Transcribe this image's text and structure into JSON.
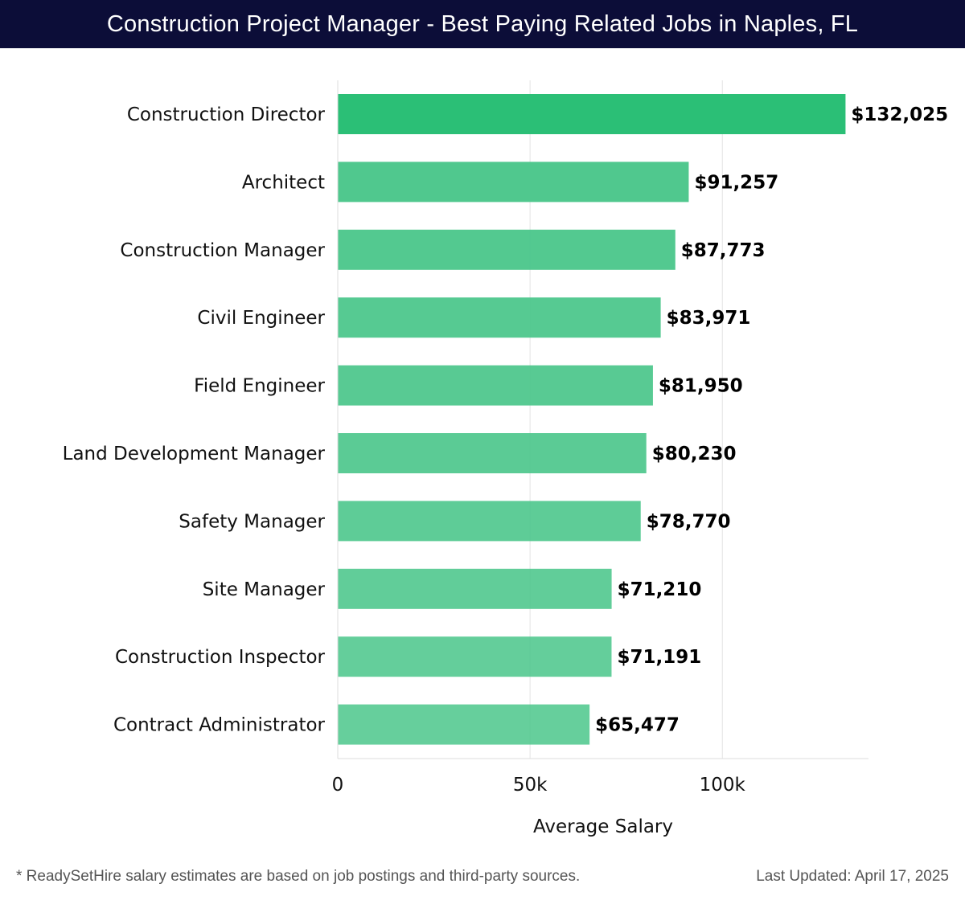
{
  "header": {
    "title": "Construction Project Manager - Best Paying Related Jobs in Naples, FL"
  },
  "chart_data": {
    "type": "bar",
    "orientation": "horizontal",
    "title": "Construction Project Manager - Best Paying Related Jobs in Naples, FL",
    "xlabel": "Average Salary",
    "ylabel": "",
    "xlim": [
      0,
      138000
    ],
    "grid": true,
    "categories": [
      "Construction Director",
      "Architect",
      "Construction Manager",
      "Civil Engineer",
      "Field Engineer",
      "Land Development Manager",
      "Safety Manager",
      "Site Manager",
      "Construction Inspector",
      "Contract Administrator"
    ],
    "values": [
      132025,
      91257,
      87773,
      83971,
      81950,
      80230,
      78770,
      71210,
      71191,
      65477
    ],
    "value_labels": [
      "$132,025",
      "$91,257",
      "$87,773",
      "$83,971",
      "$81,950",
      "$80,230",
      "$78,770",
      "$71,210",
      "$71,191",
      "$65,477"
    ],
    "x_ticks": [
      0,
      50000,
      100000
    ],
    "x_tick_labels": [
      "0",
      "50k",
      "100k"
    ],
    "highlight_color": "#2bbf76",
    "bar_color": "#4ac68a"
  },
  "footer": {
    "note": "* ReadySetHire salary estimates are based on job postings and third-party sources.",
    "updated": "Last Updated: April 17, 2025"
  }
}
